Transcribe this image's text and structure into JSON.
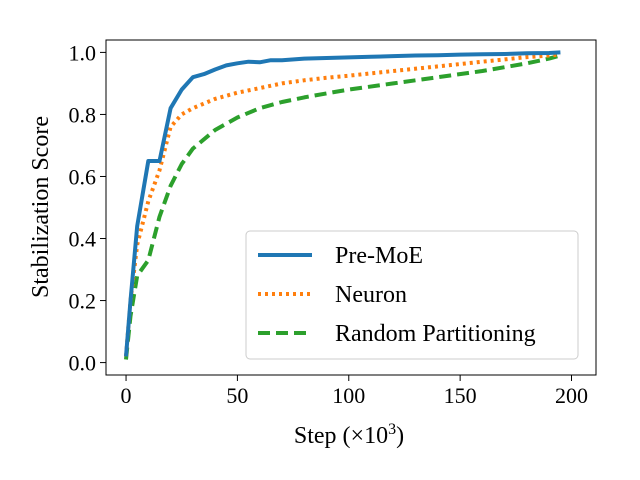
{
  "chart_data": {
    "type": "line",
    "title": "",
    "xlabel": "Step (×10",
    "xlabel_sup": "3",
    "xlabel_close": ")",
    "ylabel": "Stabilization Score",
    "xlim": [
      -9,
      211
    ],
    "ylim": [
      -0.04,
      1.04
    ],
    "xticks": [
      0,
      50,
      100,
      150,
      200
    ],
    "yticks": [
      0.0,
      0.2,
      0.4,
      0.6,
      0.8,
      1.0
    ],
    "xtick_labels": [
      "0",
      "50",
      "100",
      "150",
      "200"
    ],
    "ytick_labels": [
      "0.0",
      "0.2",
      "0.4",
      "0.6",
      "0.8",
      "1.0"
    ],
    "grid": false,
    "legend_position": "lower-right",
    "series": [
      {
        "name": "Pre-MoE",
        "color": "#1f77b4",
        "style": "solid",
        "x": [
          0,
          2,
          5,
          10,
          15,
          20,
          25,
          30,
          35,
          40,
          45,
          50,
          55,
          60,
          65,
          70,
          80,
          90,
          100,
          110,
          120,
          130,
          140,
          150,
          160,
          170,
          180,
          190,
          195
        ],
        "y": [
          0.02,
          0.2,
          0.44,
          0.65,
          0.65,
          0.82,
          0.88,
          0.92,
          0.93,
          0.945,
          0.958,
          0.965,
          0.97,
          0.968,
          0.975,
          0.975,
          0.98,
          0.982,
          0.984,
          0.986,
          0.988,
          0.99,
          0.991,
          0.993,
          0.994,
          0.995,
          0.997,
          0.998,
          1.0
        ]
      },
      {
        "name": "Neuron",
        "color": "#ff7f0e",
        "style": "dotted",
        "x": [
          0,
          2,
          5,
          10,
          15,
          20,
          25,
          30,
          40,
          50,
          60,
          70,
          80,
          90,
          100,
          120,
          140,
          160,
          180,
          190,
          195
        ],
        "y": [
          0.02,
          0.2,
          0.38,
          0.52,
          0.62,
          0.76,
          0.8,
          0.82,
          0.85,
          0.87,
          0.885,
          0.9,
          0.91,
          0.918,
          0.925,
          0.94,
          0.955,
          0.97,
          0.985,
          0.99,
          0.993
        ]
      },
      {
        "name": "Random Partitioning",
        "color": "#2ca02c",
        "style": "dashed",
        "x": [
          0,
          2,
          5,
          10,
          15,
          20,
          25,
          30,
          40,
          50,
          60,
          70,
          80,
          90,
          100,
          120,
          140,
          160,
          180,
          190,
          195
        ],
        "y": [
          0.01,
          0.15,
          0.28,
          0.33,
          0.47,
          0.57,
          0.64,
          0.69,
          0.75,
          0.79,
          0.82,
          0.84,
          0.855,
          0.868,
          0.88,
          0.9,
          0.92,
          0.94,
          0.965,
          0.98,
          0.99
        ]
      }
    ]
  }
}
